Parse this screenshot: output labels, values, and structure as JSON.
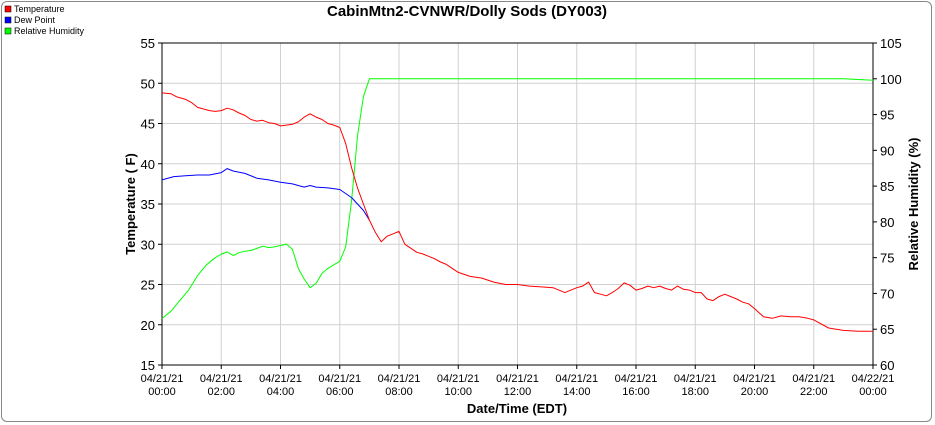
{
  "chart_data": {
    "type": "line",
    "title": "CabinMtn2-CVNWR/Dolly Sods (DY003)",
    "xlabel": "Date/Time (EDT)",
    "ylabel": "Temperature ( F)",
    "y2label": "Relative Humidity (%)",
    "ylim": [
      15,
      55
    ],
    "y2lim": [
      60,
      105
    ],
    "yticks": [
      "15",
      "20",
      "25",
      "30",
      "35",
      "40",
      "45",
      "50",
      "55"
    ],
    "y2ticks": [
      "60",
      "65",
      "70",
      "75",
      "80",
      "85",
      "90",
      "95",
      "100",
      "105"
    ],
    "xlim_hours": [
      0,
      24
    ],
    "xticks": [
      {
        "date": "04/21/21",
        "time": "00:00"
      },
      {
        "date": "04/21/21",
        "time": "02:00"
      },
      {
        "date": "04/21/21",
        "time": "04:00"
      },
      {
        "date": "04/21/21",
        "time": "06:00"
      },
      {
        "date": "04/21/21",
        "time": "08:00"
      },
      {
        "date": "04/21/21",
        "time": "10:00"
      },
      {
        "date": "04/21/21",
        "time": "12:00"
      },
      {
        "date": "04/21/21",
        "time": "14:00"
      },
      {
        "date": "04/21/21",
        "time": "16:00"
      },
      {
        "date": "04/21/21",
        "time": "18:00"
      },
      {
        "date": "04/21/21",
        "time": "20:00"
      },
      {
        "date": "04/21/21",
        "time": "22:00"
      },
      {
        "date": "04/22/21",
        "time": "00:00"
      }
    ],
    "grid": true,
    "legend_position": "top-left",
    "series": [
      {
        "name": "Temperature",
        "color": "#ff0000",
        "axis": "left",
        "x": [
          0,
          0.3,
          0.5,
          0.8,
          1.0,
          1.2,
          1.4,
          1.6,
          1.8,
          2.0,
          2.2,
          2.4,
          2.6,
          2.8,
          3.0,
          3.2,
          3.4,
          3.6,
          3.8,
          4.0,
          4.2,
          4.4,
          4.6,
          4.8,
          5.0,
          5.2,
          5.4,
          5.6,
          5.8,
          6.0,
          6.2,
          6.4,
          6.6,
          6.8,
          7.0,
          7.2,
          7.4,
          7.6,
          7.8,
          8.0,
          8.2,
          8.4,
          8.6,
          8.8,
          9.0,
          9.2,
          9.4,
          9.6,
          9.8,
          10.0,
          10.4,
          10.8,
          11.2,
          11.6,
          12.0,
          12.4,
          12.8,
          13.2,
          13.6,
          14.0,
          14.2,
          14.4,
          14.6,
          14.8,
          15.0,
          15.2,
          15.4,
          15.6,
          15.8,
          16.0,
          16.2,
          16.4,
          16.6,
          16.8,
          17.0,
          17.2,
          17.4,
          17.6,
          17.8,
          18.0,
          18.2,
          18.4,
          18.6,
          18.8,
          19.0,
          19.2,
          19.4,
          19.6,
          19.8,
          20.0,
          20.3,
          20.6,
          20.9,
          21.2,
          21.5,
          21.8,
          22.0,
          22.5,
          23.0,
          23.5,
          24.0
        ],
        "y": [
          48.8,
          48.7,
          48.3,
          48.0,
          47.6,
          47.0,
          46.8,
          46.6,
          46.5,
          46.6,
          46.9,
          46.7,
          46.3,
          46.0,
          45.5,
          45.3,
          45.4,
          45.1,
          45.0,
          44.7,
          44.8,
          44.9,
          45.2,
          45.8,
          46.2,
          45.8,
          45.5,
          45.0,
          44.8,
          44.5,
          42.5,
          39.5,
          37.0,
          35.0,
          33.0,
          31.5,
          30.3,
          31.0,
          31.3,
          31.6,
          30.0,
          29.5,
          29.0,
          28.8,
          28.5,
          28.2,
          27.8,
          27.5,
          27.0,
          26.5,
          26.0,
          25.8,
          25.3,
          25.0,
          25.0,
          24.8,
          24.7,
          24.6,
          24.0,
          24.6,
          24.8,
          25.3,
          24.0,
          23.8,
          23.6,
          24.0,
          24.5,
          25.2,
          24.9,
          24.3,
          24.5,
          24.8,
          24.6,
          24.8,
          24.5,
          24.3,
          24.8,
          24.4,
          24.3,
          24.0,
          24.0,
          23.2,
          23.0,
          23.5,
          23.8,
          23.5,
          23.2,
          22.8,
          22.6,
          22.0,
          21.0,
          20.8,
          21.1,
          21.0,
          21.0,
          20.8,
          20.6,
          19.6,
          19.3,
          19.2,
          19.2
        ]
      },
      {
        "name": "Dew Point",
        "color": "#0000ff",
        "axis": "left",
        "x": [
          0,
          0.4,
          0.8,
          1.2,
          1.6,
          2.0,
          2.2,
          2.4,
          2.8,
          3.2,
          3.6,
          4.0,
          4.4,
          4.8,
          5.0,
          5.2,
          5.6,
          6.0,
          6.4,
          6.8,
          7.0
        ],
        "y": [
          38.0,
          38.4,
          38.5,
          38.6,
          38.6,
          38.9,
          39.4,
          39.1,
          38.8,
          38.2,
          38.0,
          37.7,
          37.5,
          37.1,
          37.3,
          37.1,
          37.0,
          36.8,
          35.8,
          34.2,
          33.0
        ]
      },
      {
        "name": "Relative Humidity",
        "color": "#00ff00",
        "axis": "right",
        "x": [
          0,
          0.3,
          0.6,
          0.9,
          1.2,
          1.5,
          1.8,
          2.0,
          2.2,
          2.4,
          2.6,
          2.8,
          3.0,
          3.2,
          3.4,
          3.6,
          3.8,
          4.0,
          4.2,
          4.4,
          4.6,
          4.8,
          5.0,
          5.2,
          5.4,
          5.6,
          5.8,
          6.0,
          6.2,
          6.4,
          6.6,
          6.8,
          7.0,
          7.2,
          7.6,
          8.0,
          9.0,
          10.0,
          12.0,
          14.0,
          16.0,
          18.0,
          20.0,
          22.0,
          23.0,
          23.5,
          24.0
        ],
        "y": [
          66.5,
          67.5,
          69.0,
          70.5,
          72.5,
          74.0,
          75.0,
          75.5,
          75.8,
          75.3,
          75.7,
          75.9,
          76.0,
          76.3,
          76.6,
          76.4,
          76.5,
          76.7,
          76.9,
          76.2,
          73.5,
          72.0,
          70.8,
          71.4,
          72.8,
          73.5,
          74.0,
          74.5,
          76.5,
          83.0,
          92.0,
          97.5,
          100.0,
          100.0,
          100.0,
          100.0,
          100.0,
          100.0,
          100.0,
          100.0,
          100.0,
          100.0,
          100.0,
          100.0,
          100.0,
          99.9,
          99.8
        ]
      }
    ]
  }
}
